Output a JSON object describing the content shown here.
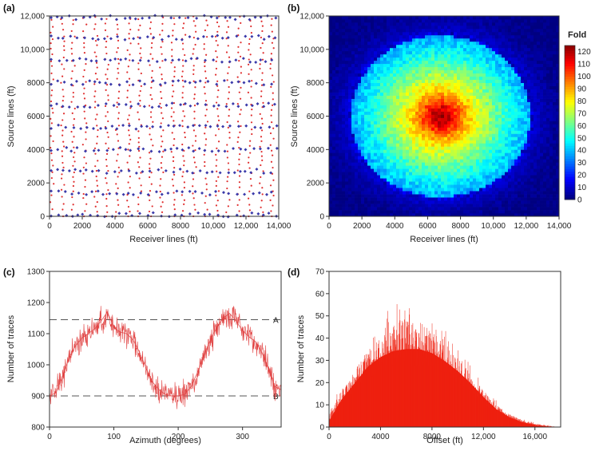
{
  "chart_data": [
    {
      "panel_label": "(a)",
      "type": "scatter",
      "xlabel": "Receiver lines (ft)",
      "ylabel": "Source lines (ft)",
      "xlim": [
        0,
        14000
      ],
      "ylim": [
        0,
        12000
      ],
      "xticks": [
        0,
        2000,
        4000,
        6000,
        8000,
        10000,
        12000,
        14000
      ],
      "xtick_labels": [
        "0",
        "2000",
        "4000",
        "6000",
        "8000",
        "10,000",
        "12,000",
        "14,000"
      ],
      "yticks": [
        0,
        2000,
        4000,
        6000,
        8000,
        10000,
        12000
      ],
      "ytick_labels": [
        "0",
        "2000",
        "4000",
        "6000",
        "8000",
        "10,000",
        "12,000"
      ],
      "series": [
        {
          "role": "receivers",
          "color": "#e03030",
          "marker": "dot",
          "line_x": [
            0,
            650,
            1300,
            2000,
            2700,
            3350,
            4000,
            4700,
            5350,
            6050,
            6700,
            7400,
            8050,
            8700,
            9400,
            10100,
            10750,
            11450,
            12100,
            12800,
            13450
          ]
        },
        {
          "role": "sources",
          "color": "#3a3aaa",
          "marker": "diamond",
          "line_y": [
            100,
            1400,
            2700,
            4000,
            5350,
            6650,
            8000,
            9350,
            10700,
            11900
          ]
        }
      ]
    },
    {
      "panel_label": "(b)",
      "type": "heatmap",
      "xlabel": "Receiver lines (ft)",
      "ylabel": "Source lines (ft)",
      "xlim": [
        0,
        14000
      ],
      "ylim": [
        0,
        12000
      ],
      "xticks": [
        0,
        2000,
        4000,
        6000,
        8000,
        10000,
        12000,
        14000
      ],
      "xtick_labels": [
        "0",
        "2000",
        "4000",
        "6000",
        "8000",
        "10,000",
        "12,000",
        "14,000"
      ],
      "yticks": [
        0,
        2000,
        4000,
        6000,
        8000,
        10000,
        12000
      ],
      "ytick_labels": [
        "0",
        "2000",
        "4000",
        "6000",
        "8000",
        "10,000",
        "12,000"
      ],
      "center": [
        6800,
        6000
      ],
      "peak_value": 122,
      "colorbar_title": "Fold",
      "colorbar_ticks": [
        0,
        10,
        20,
        30,
        40,
        50,
        60,
        70,
        80,
        90,
        100,
        110,
        120
      ],
      "colorbar_range": [
        0,
        125
      ]
    },
    {
      "panel_label": "(c)",
      "type": "line",
      "xlabel": "Azimuth (degrees)",
      "ylabel": "Number of traces",
      "xlim": [
        0,
        360
      ],
      "ylim": [
        800,
        1300
      ],
      "xticks": [
        0,
        100,
        200,
        300
      ],
      "yticks": [
        800,
        900,
        1000,
        1100,
        1200,
        1300
      ],
      "color": "#e04040",
      "x": [
        0,
        10,
        20,
        30,
        40,
        50,
        60,
        70,
        80,
        90,
        100,
        110,
        120,
        130,
        140,
        150,
        160,
        170,
        180,
        190,
        200,
        210,
        220,
        230,
        240,
        250,
        260,
        270,
        280,
        290,
        300,
        310,
        320,
        330,
        340,
        350,
        360
      ],
      "y": [
        900,
        910,
        960,
        1020,
        1060,
        1085,
        1100,
        1115,
        1140,
        1170,
        1120,
        1105,
        1100,
        1080,
        1040,
        990,
        945,
        920,
        905,
        900,
        900,
        905,
        930,
        975,
        1030,
        1080,
        1120,
        1150,
        1165,
        1140,
        1110,
        1090,
        1075,
        1040,
        990,
        930,
        920
      ],
      "reference_lines": [
        {
          "y": 1145,
          "label": "A"
        },
        {
          "y": 900,
          "label": "B"
        }
      ]
    },
    {
      "panel_label": "(d)",
      "type": "area",
      "xlabel": "Offset (ft)",
      "ylabel": "Number of traces",
      "xlim": [
        0,
        18000
      ],
      "ylim": [
        0,
        70
      ],
      "xticks": [
        0,
        4000,
        8000,
        12000,
        16000
      ],
      "xtick_labels": [
        "0",
        "4000",
        "8000",
        "12,000",
        "16,000"
      ],
      "yticks": [
        0,
        10,
        20,
        30,
        40,
        50,
        60,
        70
      ],
      "color": "#ee2010",
      "x": [
        0,
        1000,
        2000,
        3000,
        4000,
        5000,
        6000,
        7000,
        8000,
        9000,
        10000,
        11000,
        12000,
        13000,
        14000,
        15000,
        16000,
        17000
      ],
      "y_mean": [
        3,
        14,
        22,
        30,
        35,
        38,
        39,
        39,
        37,
        33,
        28,
        22,
        15,
        9,
        5,
        2.5,
        1,
        0.3
      ],
      "y_upper": [
        8,
        20,
        30,
        40,
        48,
        56,
        58,
        56,
        50,
        44,
        36,
        28,
        19,
        12,
        7,
        4,
        2,
        1
      ]
    }
  ]
}
